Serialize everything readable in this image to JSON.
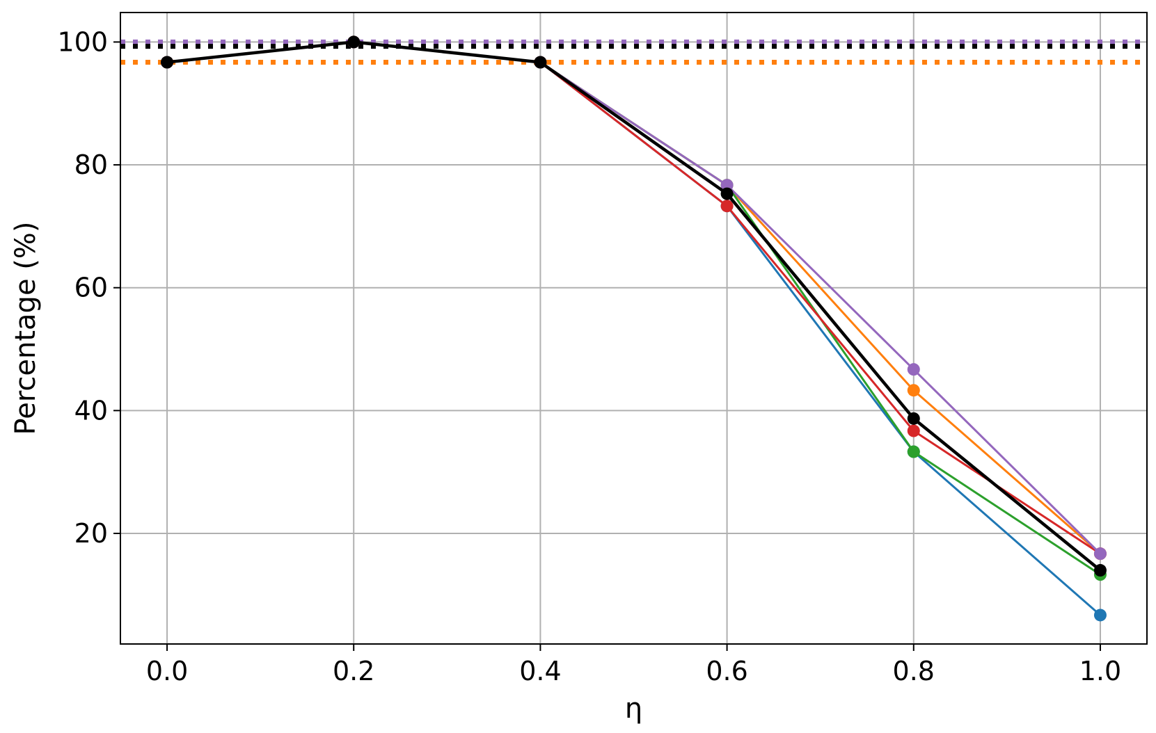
{
  "chart_data": {
    "type": "line",
    "title": "",
    "xlabel": "η",
    "ylabel": "Percentage (%)",
    "x": [
      0.0,
      0.2,
      0.4,
      0.6,
      0.8,
      1.0
    ],
    "xlim": [
      -0.05,
      1.05
    ],
    "ylim": [
      2.0,
      104.8
    ],
    "xticks": [
      0.0,
      0.2,
      0.4,
      0.6,
      0.8,
      1.0
    ],
    "xtick_labels": [
      "0.0",
      "0.2",
      "0.4",
      "0.6",
      "0.8",
      "1.0"
    ],
    "yticks": [
      20,
      40,
      60,
      80,
      100
    ],
    "ytick_labels": [
      "20",
      "40",
      "60",
      "80",
      "100"
    ],
    "grid": true,
    "legend": false,
    "series": [
      {
        "color": "#1f77b4",
        "values": [
          96.7,
          100.0,
          96.7,
          73.3,
          33.3,
          6.7
        ],
        "reference": 99.5
      },
      {
        "color": "#ff7f0e",
        "values": [
          96.7,
          100.0,
          96.7,
          76.7,
          43.3,
          16.7
        ],
        "reference": 96.7
      },
      {
        "color": "#2ca02c",
        "values": [
          96.7,
          100.0,
          96.7,
          76.7,
          33.3,
          13.3
        ],
        "reference": 99.5
      },
      {
        "color": "#d62728",
        "values": [
          96.7,
          100.0,
          96.7,
          73.3,
          36.7,
          16.7
        ],
        "reference": 99.5
      },
      {
        "color": "#9467bd",
        "values": [
          96.7,
          100.0,
          96.7,
          76.7,
          46.7,
          16.7
        ],
        "reference": 100.0
      },
      {
        "color": "#000000",
        "values": [
          96.7,
          100.0,
          96.7,
          75.3,
          38.7,
          14.0
        ],
        "reference": 99.3,
        "emphasis": true
      }
    ]
  }
}
